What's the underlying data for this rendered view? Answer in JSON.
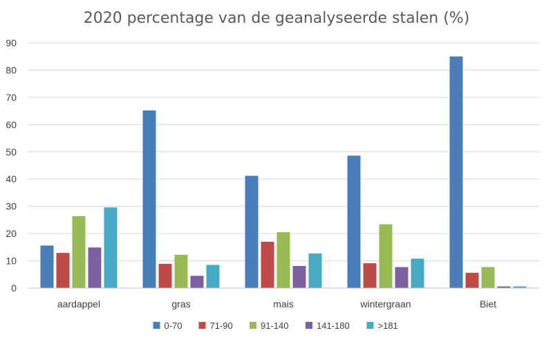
{
  "chart_data": {
    "type": "bar",
    "title": "2020 percentage van de geanalyseerde stalen (%)",
    "xlabel": "",
    "ylabel": "",
    "ylim": [
      0,
      90
    ],
    "yticks": [
      0,
      10,
      20,
      30,
      40,
      50,
      60,
      70,
      80,
      90
    ],
    "grid": true,
    "legend_position": "bottom",
    "categories": [
      "aardappel",
      "gras",
      "mais",
      "wintergraan",
      "Biet"
    ],
    "series": [
      {
        "name": "0-70",
        "color": "#4a7ebb",
        "values": [
          15.6,
          65.2,
          41.2,
          48.6,
          85.0
        ]
      },
      {
        "name": "71-90",
        "color": "#be4b48",
        "values": [
          12.9,
          8.9,
          17.0,
          9.1,
          5.6
        ]
      },
      {
        "name": "91-140",
        "color": "#98b954",
        "values": [
          26.4,
          12.2,
          20.5,
          23.4,
          7.7
        ]
      },
      {
        "name": "141-180",
        "color": "#7d60a0",
        "values": [
          14.9,
          4.5,
          8.1,
          7.7,
          0.6
        ]
      },
      {
        "name": ">181",
        "color": "#46aac5",
        "values": [
          29.6,
          8.5,
          12.7,
          10.8,
          0.6
        ]
      }
    ]
  }
}
